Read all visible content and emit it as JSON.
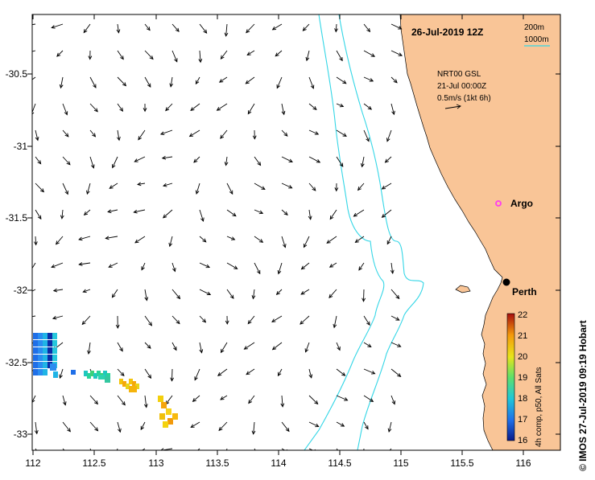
{
  "map": {
    "date_label": "26-Jul-2019 12Z",
    "product_label": "NRT00 GSL",
    "product_date": "21-Jul 00:00Z",
    "scale_vector_label": "0.5m/s (1kt 6h)",
    "isobath_labels": [
      "200m",
      "1000m"
    ],
    "credit": "© IMOS 27-Jul-2019 09:19 Hobart",
    "places": [
      {
        "name": "Argo"
      },
      {
        "name": "Perth"
      }
    ],
    "axes": {
      "x_ticks": [
        "112",
        "112.5",
        "113",
        "113.5",
        "114",
        "114.5",
        "115",
        "115.5",
        "116"
      ],
      "y_ticks": [
        "-30.5",
        "-31",
        "-31.5",
        "-32",
        "-32.5",
        "-33"
      ],
      "lon_range": [
        112,
        116.3
      ],
      "lat_range": [
        -33.15,
        -30.0
      ]
    },
    "colorbar": {
      "label": "4h comp, p50, All Sats",
      "range": [
        16,
        22
      ],
      "ticks": [
        "22",
        "21",
        "20",
        "19",
        "18",
        "17",
        "16"
      ]
    },
    "colors": {
      "land": "#f9c597",
      "isobath": "#33d6e6",
      "argo": "#ff3df0",
      "frame": "#000000"
    }
  }
}
